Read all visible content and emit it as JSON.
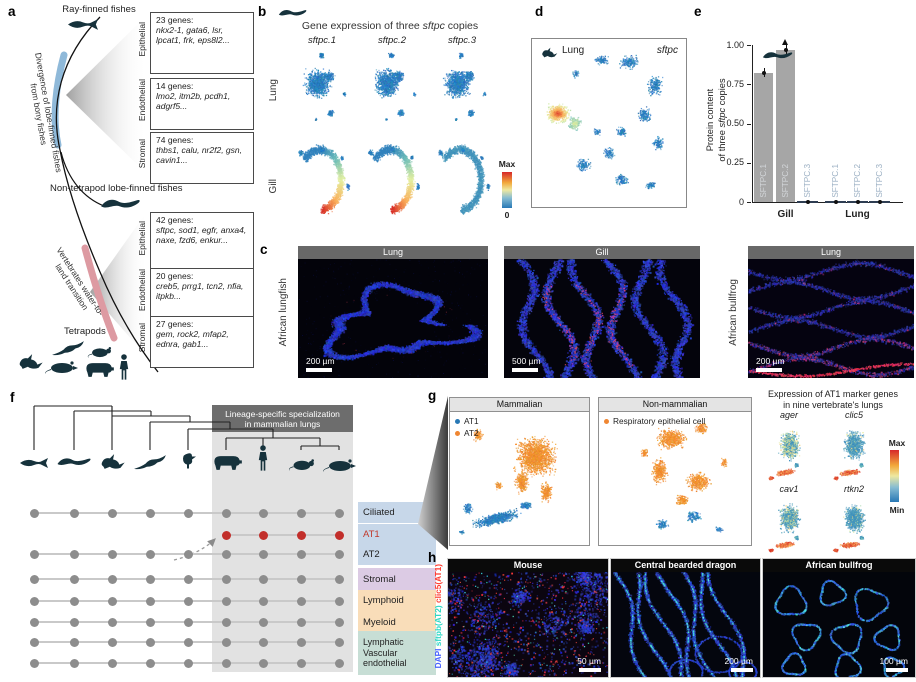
{
  "colors": {
    "umap_blue": "#2878b5",
    "umap_orange": "#ef8632",
    "at1_red": "#c0392b",
    "bar_gray": "#a6a6a6",
    "heat_min": "#3182bd",
    "heat_max": "#d62728"
  },
  "figure": {
    "panel_a": {
      "label": "a",
      "ray_finned": "Ray-finned fishes",
      "non_tetrapod": "Non-tetrapod lobe-finned fishes",
      "tetrapods": "Tetrapods",
      "divergence_line1": "Divergence of lobe-finned fishes",
      "divergence_line2": "from bony fishes",
      "transition_line1": "Vertebrates water-to-",
      "transition_line2": "land transition",
      "groups": [
        {
          "boxes": [
            {
              "side": "Epithelial",
              "count": "23 genes:",
              "genes": "nkx2-1, gata6, lsr, lpcat1, frk, eps8l2..."
            },
            {
              "side": "Endothelial",
              "count": "14 genes:",
              "genes": "lmo2, itm2b, pcdh1, adgrf5..."
            },
            {
              "side": "Stromal",
              "count": "74 genes:",
              "genes": "thbs1, calu, nr2f2, gsn, cavin1..."
            }
          ]
        },
        {
          "boxes": [
            {
              "side": "Epithelial",
              "count": "42 genes:",
              "genes": "sftpc, sod1, egfr, anxa4, naxe, fzd6, enkur..."
            },
            {
              "side": "Endothelial",
              "count": "20 genes:",
              "genes": "creb5, prrg1, tcn2, nfia, itpkb..."
            },
            {
              "side": "Stromal",
              "count": "27 genes:",
              "genes": "gem, rock2, mfap2, ednra, gab1..."
            }
          ]
        }
      ]
    },
    "panel_b": {
      "label": "b",
      "title_pre": "Gene expression of three ",
      "title_gene": "sftpc",
      "title_post": " copies",
      "columns": [
        "sftpc.1",
        "sftpc.2",
        "sftpc.3"
      ],
      "rows": [
        "Lung",
        "Gill"
      ],
      "colorbar_max": "Max",
      "colorbar_min": "0"
    },
    "panel_c": {
      "label": "c",
      "species": [
        "African lungfish",
        "African bullfrog"
      ],
      "images": [
        {
          "title": "Lung",
          "scale": "200 µm"
        },
        {
          "title": "Gill",
          "scale": "500 µm"
        },
        {
          "title": "Lung",
          "scale": "200 µm"
        }
      ]
    },
    "panel_d": {
      "label": "d",
      "organ": "Lung",
      "gene": "sftpc"
    },
    "panel_e": {
      "label": "e",
      "ylabel_line1": "Protein content",
      "ylabel_pre": "of three ",
      "ylabel_gene": "sftpc",
      "ylabel_post": " copies"
    },
    "panel_f": {
      "label": "f",
      "highlight_line1": "Lineage-specific specialization",
      "highlight_line2": "in mammalian lungs",
      "animals": [
        "ray-finned fish",
        "lungfish",
        "frog",
        "lizard",
        "bird",
        "pig",
        "human",
        "mouse",
        "rat"
      ],
      "rows": [
        {
          "label": "Ciliated",
          "bg": "#c7d7e9",
          "text": "#222222",
          "scope": "all"
        },
        {
          "label": "AT1",
          "bg": "#c7d7e9",
          "text": "#c0392b",
          "scope": "mammal"
        },
        {
          "label": "AT2",
          "bg": "#c7d7e9",
          "text": "#222222",
          "scope": "all"
        },
        {
          "label": "Stromal",
          "bg": "#dccbe4",
          "text": "#222222",
          "scope": "all"
        },
        {
          "label": "Lymphoid",
          "bg": "#f9ddb9",
          "text": "#222222",
          "scope": "all"
        },
        {
          "label": "Myeloid",
          "bg": "#f9ddb9",
          "text": "#222222",
          "scope": "all"
        },
        {
          "label": "Lymphatic",
          "bg": "#c7ded5",
          "text": "#222222",
          "scope": "all"
        },
        {
          "label": "Vascular endothelial",
          "bg": "#c7ded5",
          "text": "#222222",
          "scope": "all"
        }
      ]
    },
    "panel_g": {
      "label": "g",
      "box1_title": "Mammalian",
      "box1_legend": [
        {
          "label": "AT1",
          "color": "#2878b5"
        },
        {
          "label": "AT2",
          "color": "#ef8632"
        }
      ],
      "box2_title": "Non-mammalian",
      "box2_legend": [
        {
          "label": "Respiratory epithelial cell",
          "color": "#ef8632"
        }
      ],
      "feature_title_line1": "Expression of AT1 marker genes",
      "feature_title_line2": "in nine vertebrate's lungs",
      "genes": [
        "ager",
        "clic5",
        "cav1",
        "rtkn2"
      ],
      "colorbar_max": "Max",
      "colorbar_min": "Min"
    },
    "panel_h": {
      "label": "h",
      "stains": [
        {
          "text": "DAPI",
          "color": "#4a63ff"
        },
        {
          "text": "sftpb(AT2)",
          "color": "#2fd8c6"
        },
        {
          "text": "clic5(AT1)",
          "color": "#ff3b30"
        }
      ],
      "images": [
        {
          "title": "Mouse",
          "scale": "50 µm"
        },
        {
          "title": "Central bearded dragon",
          "scale": "200 µm"
        },
        {
          "title": "African bullfrog",
          "scale": "100 µm"
        }
      ]
    }
  },
  "chart_data": {
    "type": "bar",
    "title": "Protein content of three sftpc copies",
    "ylabel": "Protein content of three sftpc copies",
    "ylim": [
      0,
      1.0
    ],
    "yticks": [
      {
        "v": 0,
        "label": "0"
      },
      {
        "v": 0.25,
        "label": "0.25"
      },
      {
        "v": 0.5,
        "label": "0.50"
      },
      {
        "v": 0.75,
        "label": "0.75"
      },
      {
        "v": 1,
        "label": "1.00"
      }
    ],
    "groups": [
      {
        "label": "Gill",
        "bars": [
          {
            "name": "SFTPC.1",
            "value": 0.82
          },
          {
            "name": "SFTPC.2",
            "value": 0.97
          },
          {
            "name": "SFTPC.3",
            "value": 0.01
          }
        ]
      },
      {
        "label": "Lung",
        "bars": [
          {
            "name": "SFTPC.1",
            "value": 0.01
          },
          {
            "name": "SFTPC.2",
            "value": 0.01
          },
          {
            "name": "SFTPC.3",
            "value": 0.01
          }
        ]
      }
    ]
  }
}
